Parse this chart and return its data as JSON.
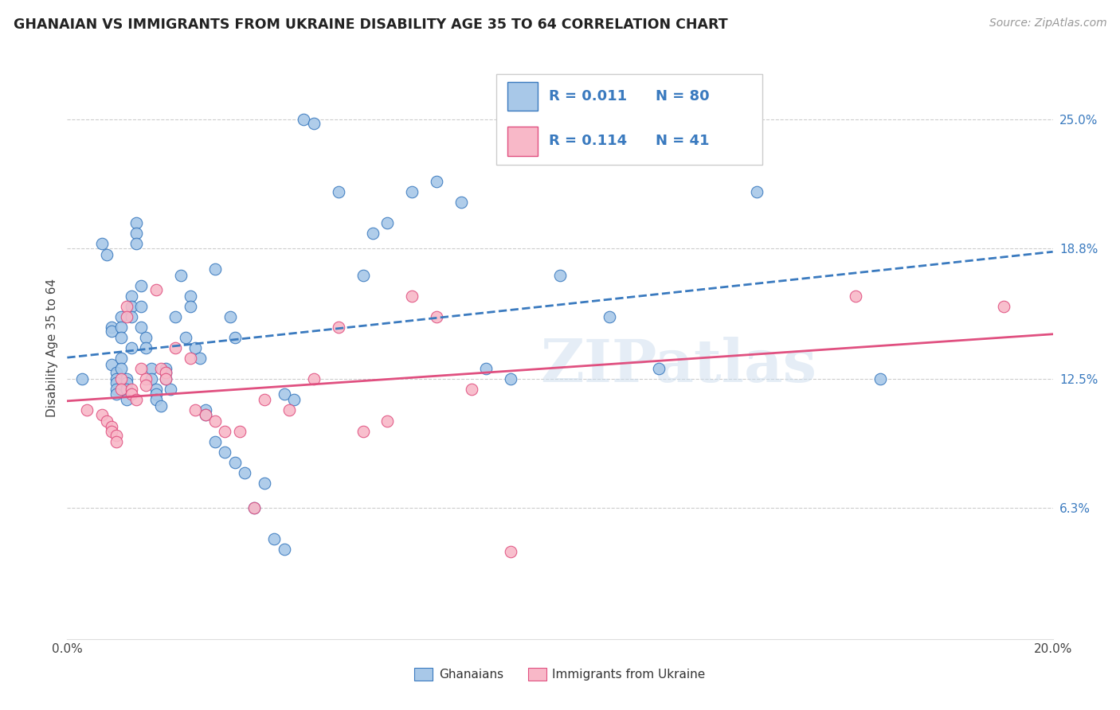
{
  "title": "GHANAIAN VS IMMIGRANTS FROM UKRAINE DISABILITY AGE 35 TO 64 CORRELATION CHART",
  "source": "Source: ZipAtlas.com",
  "ylabel": "Disability Age 35 to 64",
  "xmin": 0.0,
  "xmax": 0.2,
  "ymin": 0.0,
  "ymax": 0.28,
  "yticks": [
    0.063,
    0.125,
    0.188,
    0.25
  ],
  "ytick_labels": [
    "6.3%",
    "12.5%",
    "18.8%",
    "25.0%"
  ],
  "xticks": [
    0.0,
    0.05,
    0.1,
    0.15,
    0.2
  ],
  "xtick_labels": [
    "0.0%",
    "",
    "",
    "",
    "20.0%"
  ],
  "watermark": "ZIPatlas",
  "color_blue": "#a8c8e8",
  "color_pink": "#f8b8c8",
  "line_blue": "#3a7abf",
  "line_pink": "#e05080",
  "trend_blue": "#3a7abf",
  "trend_pink": "#e05080",
  "blue_x": [
    0.003,
    0.007,
    0.008,
    0.009,
    0.009,
    0.009,
    0.01,
    0.01,
    0.01,
    0.01,
    0.01,
    0.011,
    0.011,
    0.011,
    0.011,
    0.011,
    0.012,
    0.012,
    0.012,
    0.012,
    0.013,
    0.013,
    0.013,
    0.013,
    0.014,
    0.014,
    0.014,
    0.015,
    0.015,
    0.015,
    0.016,
    0.016,
    0.017,
    0.017,
    0.018,
    0.018,
    0.018,
    0.019,
    0.02,
    0.02,
    0.02,
    0.021,
    0.022,
    0.023,
    0.024,
    0.025,
    0.025,
    0.026,
    0.027,
    0.028,
    0.028,
    0.03,
    0.03,
    0.032,
    0.033,
    0.034,
    0.034,
    0.036,
    0.038,
    0.04,
    0.042,
    0.044,
    0.044,
    0.046,
    0.048,
    0.05,
    0.055,
    0.06,
    0.062,
    0.065,
    0.07,
    0.075,
    0.08,
    0.085,
    0.09,
    0.1,
    0.11,
    0.12,
    0.14,
    0.165
  ],
  "blue_y": [
    0.125,
    0.19,
    0.185,
    0.15,
    0.148,
    0.132,
    0.128,
    0.125,
    0.123,
    0.12,
    0.118,
    0.155,
    0.15,
    0.145,
    0.135,
    0.13,
    0.125,
    0.123,
    0.12,
    0.115,
    0.165,
    0.16,
    0.155,
    0.14,
    0.2,
    0.195,
    0.19,
    0.17,
    0.16,
    0.15,
    0.145,
    0.14,
    0.13,
    0.125,
    0.12,
    0.118,
    0.115,
    0.112,
    0.13,
    0.128,
    0.125,
    0.12,
    0.155,
    0.175,
    0.145,
    0.165,
    0.16,
    0.14,
    0.135,
    0.11,
    0.108,
    0.178,
    0.095,
    0.09,
    0.155,
    0.145,
    0.085,
    0.08,
    0.063,
    0.075,
    0.048,
    0.043,
    0.118,
    0.115,
    0.25,
    0.248,
    0.215,
    0.175,
    0.195,
    0.2,
    0.215,
    0.22,
    0.21,
    0.13,
    0.125,
    0.175,
    0.155,
    0.13,
    0.215,
    0.125
  ],
  "pink_x": [
    0.004,
    0.007,
    0.008,
    0.009,
    0.009,
    0.01,
    0.01,
    0.011,
    0.011,
    0.012,
    0.012,
    0.013,
    0.013,
    0.014,
    0.015,
    0.016,
    0.016,
    0.018,
    0.019,
    0.02,
    0.02,
    0.022,
    0.025,
    0.026,
    0.028,
    0.03,
    0.032,
    0.035,
    0.038,
    0.04,
    0.045,
    0.05,
    0.055,
    0.06,
    0.065,
    0.07,
    0.075,
    0.082,
    0.09,
    0.16,
    0.19
  ],
  "pink_y": [
    0.11,
    0.108,
    0.105,
    0.102,
    0.1,
    0.098,
    0.095,
    0.125,
    0.12,
    0.16,
    0.155,
    0.12,
    0.118,
    0.115,
    0.13,
    0.125,
    0.122,
    0.168,
    0.13,
    0.128,
    0.125,
    0.14,
    0.135,
    0.11,
    0.108,
    0.105,
    0.1,
    0.1,
    0.063,
    0.115,
    0.11,
    0.125,
    0.15,
    0.1,
    0.105,
    0.165,
    0.155,
    0.12,
    0.042,
    0.165,
    0.16
  ]
}
